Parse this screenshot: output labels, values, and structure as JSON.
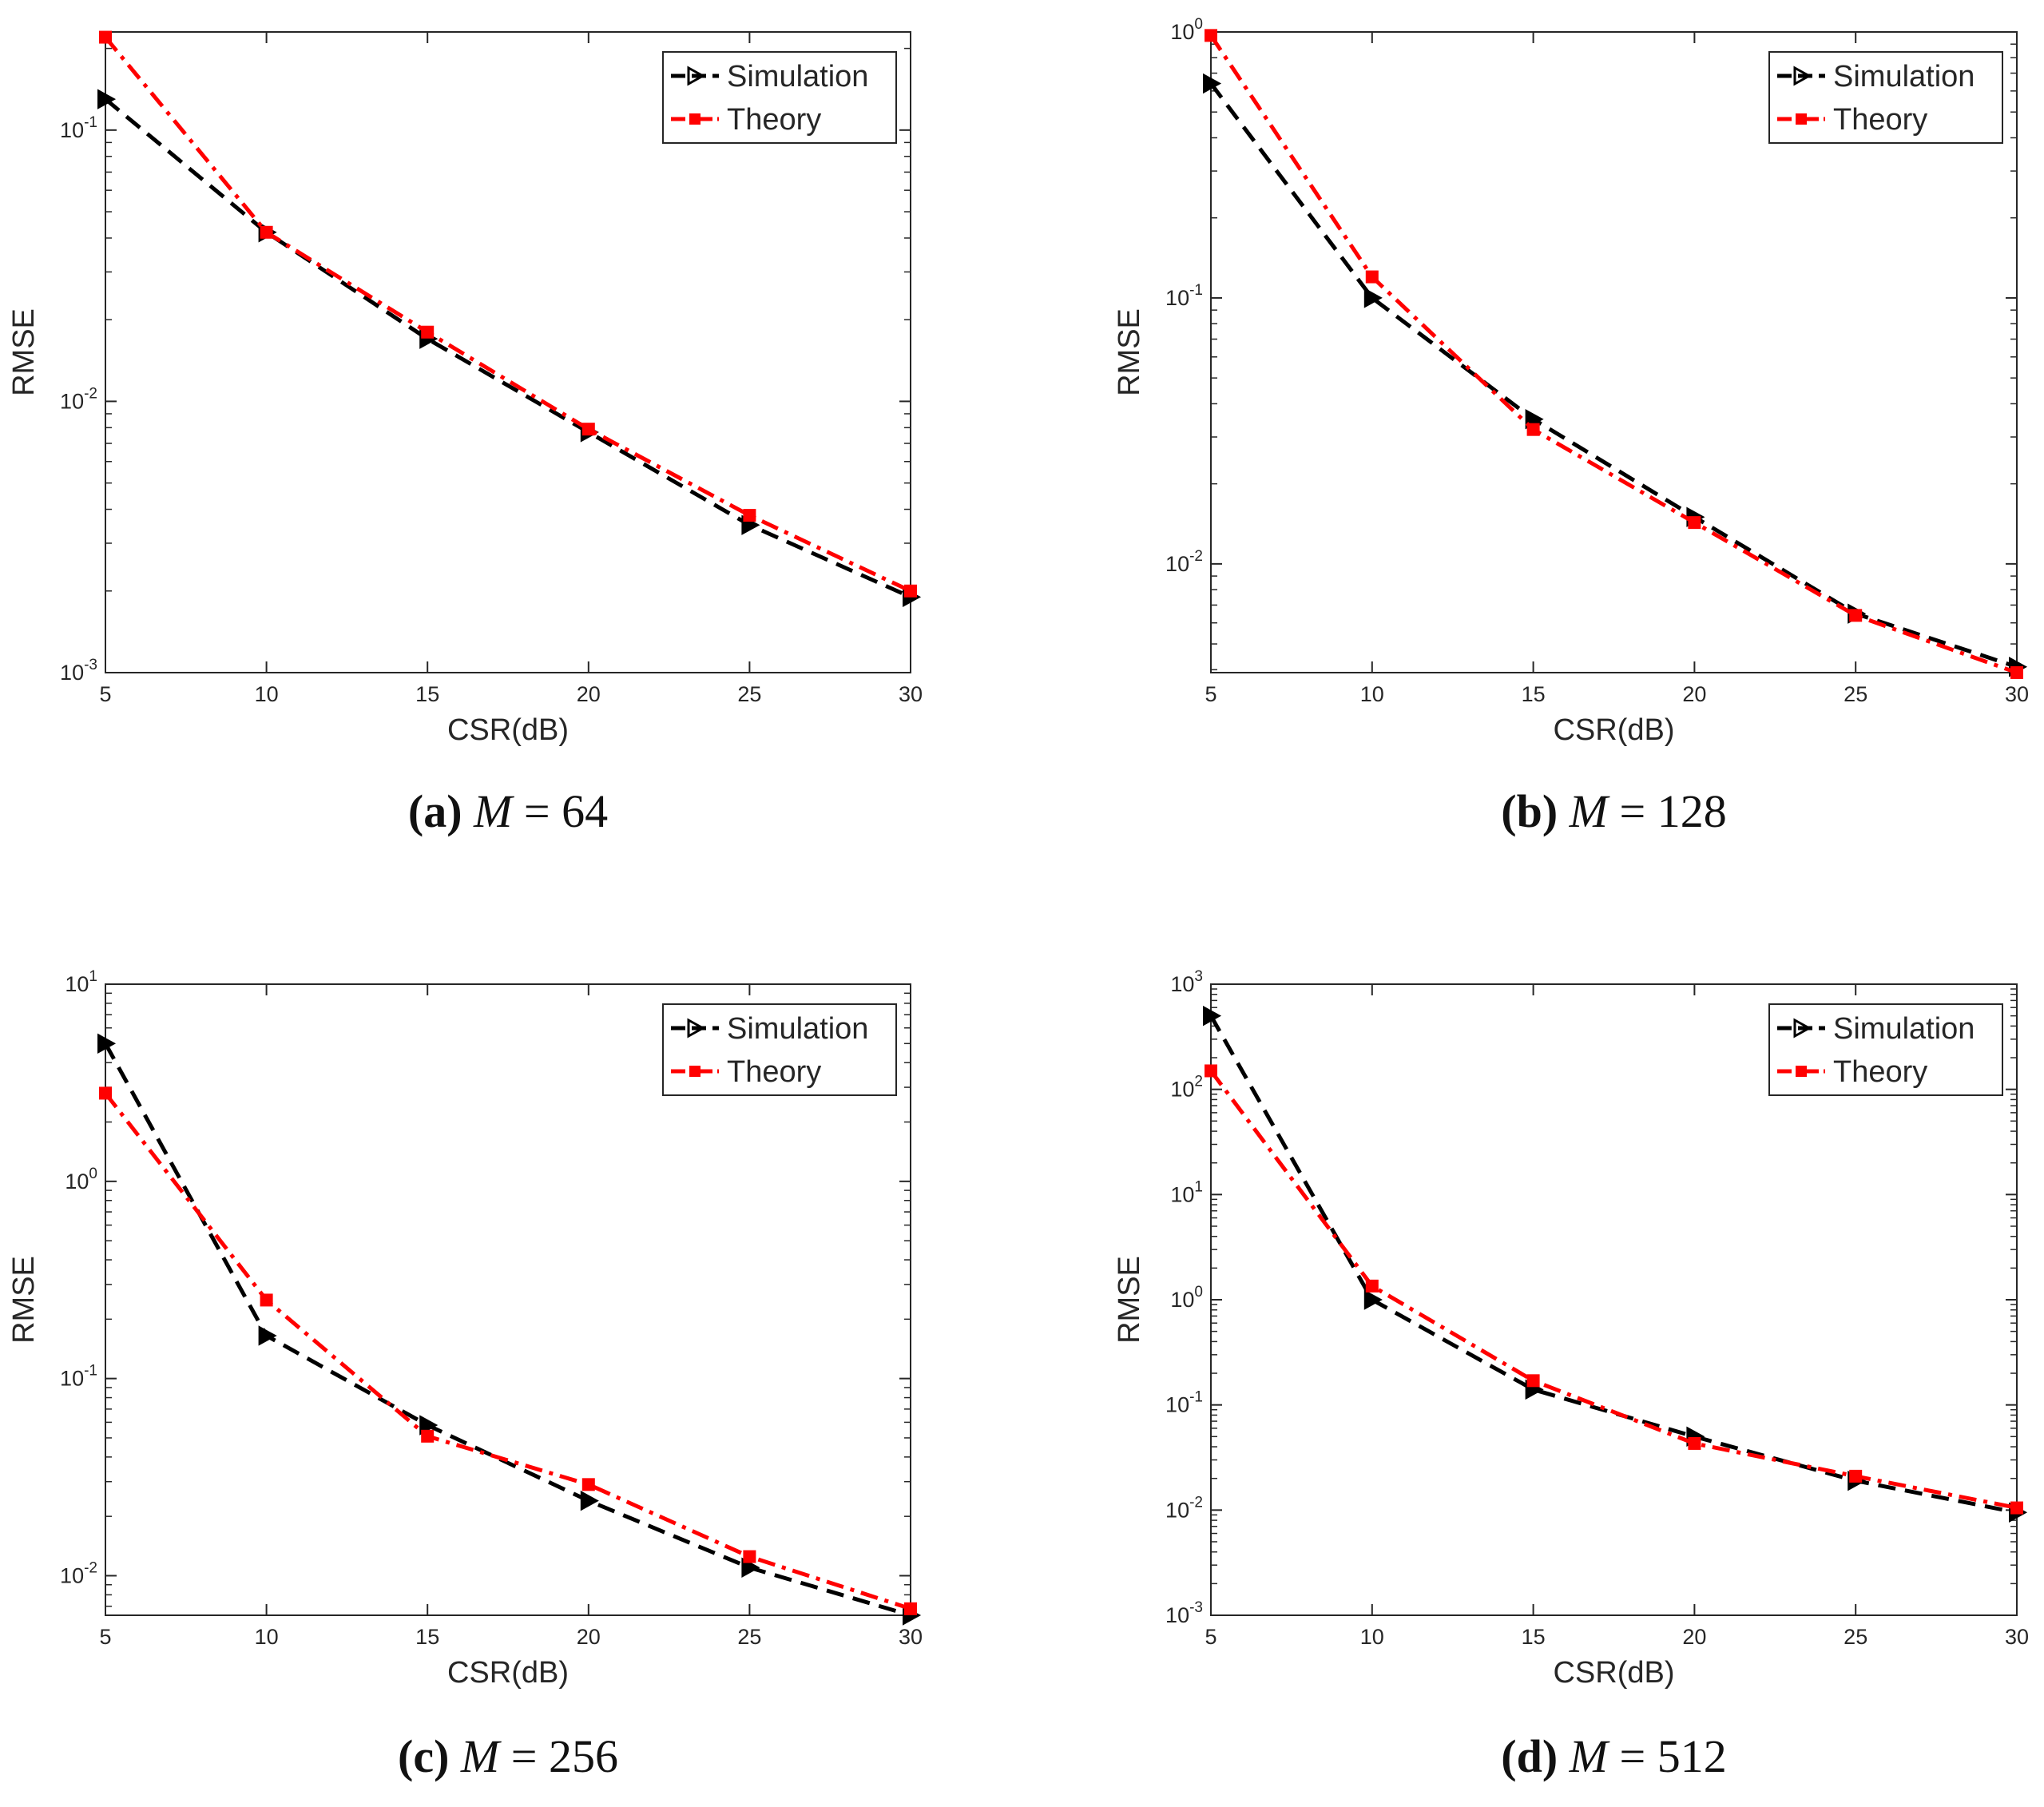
{
  "colors": {
    "simulation": "#000000",
    "theory": "#ff0000",
    "axis": "#262626",
    "background": "#ffffff"
  },
  "chart_data": [
    {
      "type": "line",
      "id": "a",
      "panel_letter": "(a)",
      "panel_rest": " M = 64",
      "caption": "(a) M = 64",
      "xlabel": "CSR(dB)",
      "ylabel": "RMSE",
      "yscale": "log",
      "x": [
        5,
        10,
        15,
        20,
        25,
        30
      ],
      "xlim": [
        5,
        30
      ],
      "ylim": [
        0.001,
        0.23
      ],
      "xticks": [
        "5",
        "10",
        "15",
        "20",
        "25",
        "30"
      ],
      "yticks": [
        {
          "value": 0.1,
          "base": "10",
          "exp": "-1"
        },
        {
          "value": 0.01,
          "base": "10",
          "exp": "-2"
        },
        {
          "value": 0.001,
          "base": "10",
          "exp": "-3"
        }
      ],
      "legend_position": "top-right",
      "series": [
        {
          "name": "Simulation",
          "style": "dashed",
          "marker": "triangle-right",
          "values": [
            0.13,
            0.042,
            0.017,
            0.0077,
            0.0035,
            0.0019
          ]
        },
        {
          "name": "Theory",
          "style": "dashdot",
          "marker": "square",
          "values": [
            0.22,
            0.042,
            0.018,
            0.0079,
            0.0038,
            0.002
          ]
        }
      ]
    },
    {
      "type": "line",
      "id": "b",
      "panel_letter": "(b)",
      "panel_rest": " M = 128",
      "caption": "(b) M = 128",
      "xlabel": "CSR(dB)",
      "ylabel": "RMSE",
      "yscale": "log",
      "x": [
        5,
        10,
        15,
        20,
        25,
        30
      ],
      "xlim": [
        5,
        30
      ],
      "ylim": [
        0.0039,
        1.0
      ],
      "xticks": [
        "5",
        "10",
        "15",
        "20",
        "25",
        "30"
      ],
      "yticks": [
        {
          "value": 1,
          "base": "10",
          "exp": "0"
        },
        {
          "value": 0.1,
          "base": "10",
          "exp": "-1"
        },
        {
          "value": 0.01,
          "base": "10",
          "exp": "-2"
        }
      ],
      "legend_position": "top-right",
      "series": [
        {
          "name": "Simulation",
          "style": "dashed",
          "marker": "triangle-right",
          "values": [
            0.64,
            0.1,
            0.035,
            0.015,
            0.0065,
            0.0041
          ]
        },
        {
          "name": "Theory",
          "style": "dashdot",
          "marker": "square",
          "values": [
            0.97,
            0.12,
            0.032,
            0.0143,
            0.0064,
            0.0039
          ]
        }
      ]
    },
    {
      "type": "line",
      "id": "c",
      "panel_letter": "(c)",
      "panel_rest": " M = 256",
      "caption": "(c) M = 256",
      "xlabel": "CSR(dB)",
      "ylabel": "RMSE",
      "yscale": "log",
      "x": [
        5,
        10,
        15,
        20,
        25,
        30
      ],
      "xlim": [
        5,
        30
      ],
      "ylim": [
        0.0063,
        10
      ],
      "xticks": [
        "5",
        "10",
        "15",
        "20",
        "25",
        "30"
      ],
      "yticks": [
        {
          "value": 10,
          "base": "10",
          "exp": "1"
        },
        {
          "value": 1,
          "base": "10",
          "exp": "0"
        },
        {
          "value": 0.1,
          "base": "10",
          "exp": "-1"
        },
        {
          "value": 0.01,
          "base": "10",
          "exp": "-2"
        }
      ],
      "legend_position": "top-right",
      "series": [
        {
          "name": "Simulation",
          "style": "dashed",
          "marker": "triangle-right",
          "values": [
            5.0,
            0.165,
            0.058,
            0.024,
            0.011,
            0.0063
          ]
        },
        {
          "name": "Theory",
          "style": "dashdot",
          "marker": "square",
          "values": [
            2.8,
            0.25,
            0.051,
            0.029,
            0.0125,
            0.0068
          ]
        }
      ]
    },
    {
      "type": "line",
      "id": "d",
      "panel_letter": "(d)",
      "panel_rest": " M = 512",
      "caption": "(d) M = 512",
      "xlabel": "CSR(dB)",
      "ylabel": "RMSE",
      "yscale": "log",
      "x": [
        5,
        10,
        15,
        20,
        25,
        30
      ],
      "xlim": [
        5,
        30
      ],
      "ylim": [
        0.001,
        1000
      ],
      "xticks": [
        "5",
        "10",
        "15",
        "20",
        "25",
        "30"
      ],
      "yticks": [
        {
          "value": 1000,
          "base": "10",
          "exp": "3"
        },
        {
          "value": 100,
          "base": "10",
          "exp": "2"
        },
        {
          "value": 10,
          "base": "10",
          "exp": "1"
        },
        {
          "value": 1,
          "base": "10",
          "exp": "0"
        },
        {
          "value": 0.1,
          "base": "10",
          "exp": "-1"
        },
        {
          "value": 0.01,
          "base": "10",
          "exp": "-2"
        },
        {
          "value": 0.001,
          "base": "10",
          "exp": "-3"
        }
      ],
      "legend_position": "top-right",
      "series": [
        {
          "name": "Simulation",
          "style": "dashed",
          "marker": "triangle-right",
          "values": [
            500,
            1.0,
            0.14,
            0.05,
            0.019,
            0.0095
          ]
        },
        {
          "name": "Theory",
          "style": "dashdot",
          "marker": "square",
          "values": [
            150,
            1.35,
            0.17,
            0.043,
            0.021,
            0.0105
          ]
        }
      ]
    }
  ]
}
